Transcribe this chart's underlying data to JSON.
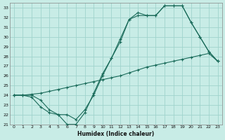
{
  "bg_color": "#c8ece6",
  "grid_color": "#a0d4cc",
  "line_color": "#1a6b5a",
  "xlabel": "Humidex (Indice chaleur)",
  "xlim": [
    -0.5,
    23.5
  ],
  "ylim": [
    21,
    33.5
  ],
  "xticks": [
    0,
    1,
    2,
    3,
    4,
    5,
    6,
    7,
    8,
    9,
    10,
    11,
    12,
    13,
    14,
    15,
    16,
    17,
    18,
    19,
    20,
    21,
    22,
    23
  ],
  "yticks": [
    21,
    22,
    23,
    24,
    25,
    26,
    27,
    28,
    29,
    30,
    31,
    32,
    33
  ],
  "line1": {
    "x": [
      0,
      1,
      2,
      3,
      4,
      5,
      6,
      7,
      8,
      9,
      10,
      11,
      12,
      13,
      14,
      15,
      16,
      17,
      18,
      19,
      20,
      21,
      22,
      23
    ],
    "y": [
      24,
      24,
      23.8,
      22.8,
      22.2,
      22.0,
      21.0,
      21.0,
      22.2,
      24.2,
      26.2,
      27.8,
      29.8,
      31.8,
      32.5,
      32.2,
      32.2,
      33.2,
      33.2,
      33.2,
      31.5,
      30.0,
      28.5,
      27.5
    ]
  },
  "line2": {
    "x": [
      0,
      1,
      2,
      3,
      4,
      5,
      6,
      7,
      8,
      9,
      10,
      11,
      12,
      13,
      14,
      15,
      16,
      17,
      18,
      19,
      20,
      21,
      22,
      23
    ],
    "y": [
      24.0,
      24.0,
      24.1,
      24.2,
      24.4,
      24.6,
      24.8,
      25.0,
      25.2,
      25.4,
      25.6,
      25.8,
      26.0,
      26.3,
      26.6,
      26.9,
      27.1,
      27.3,
      27.5,
      27.7,
      27.9,
      28.1,
      28.3,
      27.5
    ]
  },
  "line3": {
    "x": [
      0,
      1,
      2,
      3,
      4,
      5,
      6,
      7,
      8,
      9,
      10,
      11,
      12,
      13,
      14,
      15,
      16,
      17,
      18,
      19,
      20,
      21,
      22,
      23
    ],
    "y": [
      24.0,
      24.0,
      24.0,
      23.5,
      22.5,
      22.0,
      22.0,
      21.5,
      22.5,
      24.0,
      26.0,
      27.8,
      29.5,
      31.8,
      32.2,
      32.2,
      32.2,
      33.2,
      33.2,
      33.2,
      31.5,
      30.0,
      28.5,
      27.5
    ]
  }
}
